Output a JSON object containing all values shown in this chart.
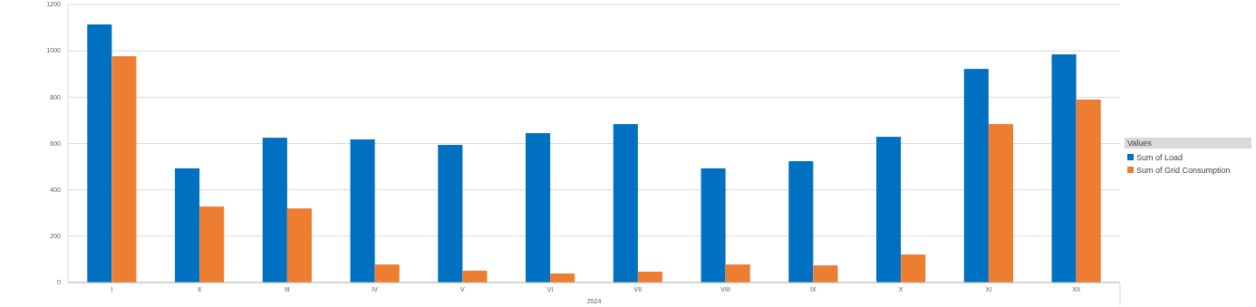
{
  "chart_data": {
    "type": "bar",
    "categories": [
      "I",
      "II",
      "III",
      "IV",
      "V",
      "VI",
      "VII",
      "VIII",
      "IX",
      "X",
      "XI",
      "XII"
    ],
    "xlabel": "2024",
    "legend_title": "Values",
    "series": [
      {
        "name": "Sum of Load",
        "color": "#0070c0",
        "values": [
          1114,
          493,
          625,
          618,
          594,
          645,
          684,
          493,
          524,
          629,
          922,
          985
        ]
      },
      {
        "name": "Sum of Grid Consumption",
        "color": "#ed7d31",
        "values": [
          977,
          328,
          320,
          78,
          51,
          39,
          47,
          78,
          74,
          121,
          684,
          790
        ]
      }
    ],
    "ylim": [
      0,
      1200
    ],
    "yticks": [
      0,
      200,
      400,
      600,
      800,
      1000,
      1200
    ],
    "grid": "y",
    "legend": "right"
  }
}
